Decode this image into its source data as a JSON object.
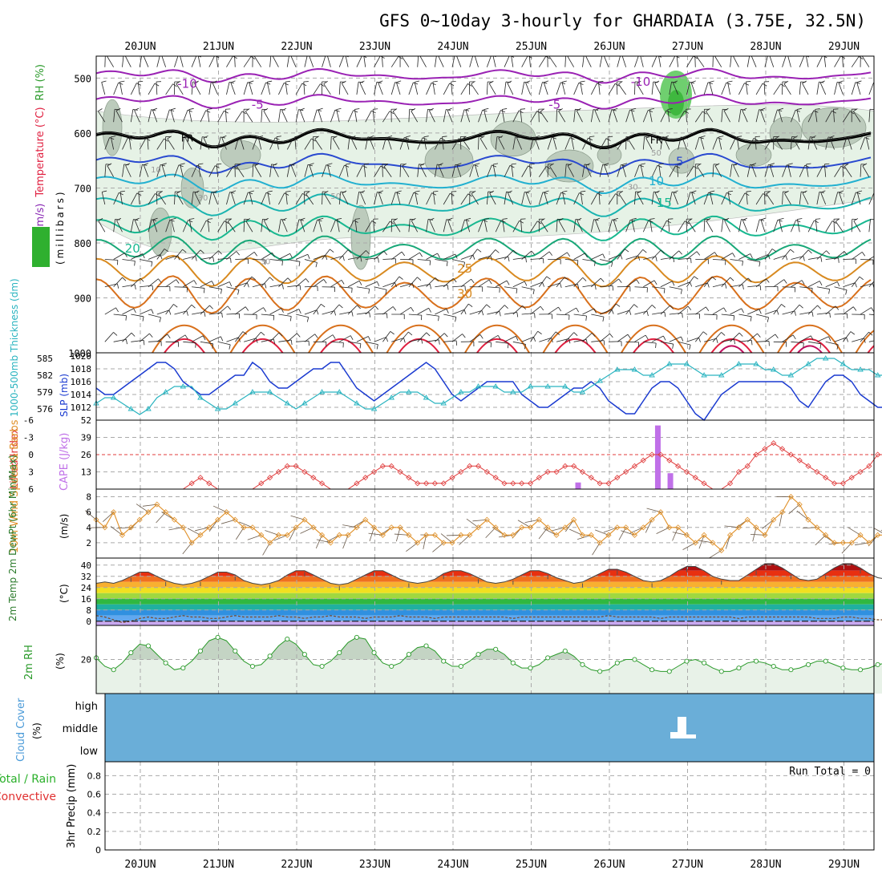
{
  "title": "GFS 0~10day 3-hourly for GHARDAIA (3.75E, 32.5N)",
  "dates": [
    "20JUN",
    "21JUN",
    "22JUN",
    "23JUN",
    "24JUN",
    "25JUN",
    "26JUN",
    "27JUN",
    "28JUN",
    "29JUN"
  ],
  "colors": {
    "temp_isotherm_cold": "#9a22b4",
    "temp_isotherm_blue": "#2a4ad0",
    "temp_isotherm_cyan": "#22b0d0",
    "temp_isotherm_teal": "#18b890",
    "temp_isotherm_orange": "#d88a20",
    "temp_isotherm_red": "#e02040",
    "rh_fill": "#e6f2e6",
    "slp_line": "#1a3ad0",
    "thickness_line": "#2ab4c0",
    "lifted_index": "#e03c3c",
    "cape_bar": "#c070e8",
    "wind_speed": "#e09028",
    "rh2m_line": "#2a9a2a",
    "cloud_fill": "#6aaed8",
    "dewpoint_fill": "#c8a8f0"
  },
  "chart_data": [
    {
      "type": "line",
      "name": "upper-air",
      "ylabel_parts": [
        "Wind (m/s)",
        "Temperature (°C)",
        "RH (%)"
      ],
      "yunit": "(millibars)",
      "yticks": [
        500,
        600,
        700,
        800,
        900,
        1000
      ],
      "ylim": [
        460,
        1000
      ],
      "isotherm_labels": [
        {
          "text": "-10",
          "x": 0.6,
          "p": 510
        },
        {
          "text": "-10",
          "x": 6.4,
          "p": 507
        },
        {
          "text": "-5",
          "x": 1.5,
          "p": 548
        },
        {
          "text": "-5",
          "x": 5.3,
          "p": 548
        },
        {
          "text": "FR",
          "x": 0.6,
          "p": 608
        },
        {
          "text": "FR",
          "x": 6.6,
          "p": 612
        },
        {
          "text": "5",
          "x": 6.9,
          "p": 652
        },
        {
          "text": "10",
          "x": 6.6,
          "p": 688
        },
        {
          "text": "15",
          "x": 6.7,
          "p": 727
        },
        {
          "text": "20",
          "x": -0.1,
          "p": 810
        },
        {
          "text": "25",
          "x": 4.15,
          "p": 847
        },
        {
          "text": "30",
          "x": 4.15,
          "p": 893
        }
      ],
      "rh_labels": [
        {
          "text": "10",
          "x": 0.2,
          "p": 666
        },
        {
          "text": "30",
          "x": 0.8,
          "p": 717
        },
        {
          "text": "50",
          "x": 2.5,
          "p": 714
        },
        {
          "text": "30",
          "x": 1.6,
          "p": 833
        },
        {
          "text": "50",
          "x": 6.6,
          "p": 635
        },
        {
          "text": "30",
          "x": 6.3,
          "p": 697
        }
      ]
    },
    {
      "type": "line",
      "name": "slp-thickness",
      "ylabel_left": "1000-500mb Thickness (dm)",
      "ylabel_right": "SLP (mb)",
      "thickness_ticks": [
        576,
        579,
        582,
        585
      ],
      "slp_ticks": [
        1012,
        1014,
        1016,
        1018,
        1020
      ],
      "series": [
        {
          "name": "SLP",
          "values": [
            1015,
            1014,
            1014,
            1015,
            1016,
            1017,
            1018,
            1019,
            1019,
            1018,
            1016,
            1015,
            1014,
            1014,
            1015,
            1016,
            1017,
            1017,
            1019,
            1018,
            1016,
            1015,
            1015,
            1016,
            1017,
            1018,
            1018,
            1019,
            1019,
            1017,
            1015,
            1014,
            1013,
            1014,
            1015,
            1016,
            1017,
            1018,
            1019,
            1018,
            1016,
            1014,
            1013,
            1014,
            1015,
            1016,
            1016,
            1016,
            1016,
            1014,
            1013,
            1012,
            1012,
            1013,
            1014,
            1015,
            1015,
            1016,
            1015,
            1013,
            1012,
            1011,
            1011,
            1013,
            1015,
            1016,
            1016,
            1015,
            1013,
            1011,
            1010,
            1012,
            1014,
            1015,
            1016,
            1016,
            1016,
            1016,
            1016,
            1016,
            1015,
            1013,
            1012,
            1014,
            1016,
            1017,
            1017,
            1016,
            1014,
            1013,
            1012,
            1012,
            1012
          ]
        },
        {
          "name": "Thickness",
          "values": [
            577,
            578,
            578,
            577,
            576,
            575,
            576,
            578,
            579,
            580,
            580,
            580,
            578,
            577,
            576,
            576,
            577,
            578,
            579,
            579,
            579,
            578,
            577,
            576,
            577,
            578,
            579,
            579,
            579,
            578,
            577,
            576,
            576,
            577,
            578,
            579,
            579,
            579,
            578,
            577,
            577,
            578,
            579,
            579,
            580,
            580,
            580,
            579,
            579,
            579,
            580,
            580,
            580,
            580,
            580,
            579,
            579,
            580,
            581,
            582,
            583,
            583,
            583,
            582,
            582,
            583,
            584,
            584,
            584,
            583,
            582,
            582,
            582,
            583,
            584,
            584,
            584,
            583,
            583,
            582,
            582,
            583,
            584,
            585,
            585,
            585,
            584,
            583,
            583,
            583,
            582,
            582,
            582
          ]
        }
      ]
    },
    {
      "type": "bar",
      "name": "li-cape",
      "ylabel_left": "Lifted Index",
      "ylabel_right": "CAPE (J/kg)",
      "li_ticks": [
        "-6",
        "-3",
        "0",
        "3",
        "6"
      ],
      "cape_ticks": [
        "52",
        "39",
        "26",
        "13"
      ],
      "li_series": {
        "name": "Lifted Index",
        "values": [
          6,
          6,
          6,
          6,
          6,
          6,
          6,
          6,
          6,
          6,
          6,
          5,
          4,
          5,
          6,
          6,
          6,
          6,
          6,
          5,
          4,
          3,
          2,
          2,
          3,
          4,
          5,
          6,
          6,
          6,
          5,
          4,
          3,
          2,
          2,
          3,
          4,
          5,
          5,
          5,
          5,
          4,
          3,
          2,
          2,
          3,
          4,
          5,
          5,
          5,
          5,
          4,
          3,
          3,
          2,
          2,
          3,
          4,
          5,
          5,
          4,
          3,
          2,
          1,
          0,
          0,
          1,
          2,
          3,
          4,
          5,
          6,
          6,
          5,
          3,
          2,
          0,
          -1,
          -2,
          -1,
          0,
          1,
          2,
          3,
          4,
          5,
          5,
          4,
          3,
          2,
          0,
          0,
          6
        ]
      },
      "cape_series": {
        "name": "CAPE",
        "points": [
          {
            "x": 5.6,
            "v": 5
          },
          {
            "x": 6.62,
            "v": 48
          },
          {
            "x": 6.78,
            "v": 12
          }
        ]
      }
    },
    {
      "type": "line",
      "name": "wind10m",
      "ylabel": "10m Wind Speed & Barbs",
      "yunit": "(m/s)",
      "yticks": [
        2,
        4,
        6,
        8
      ],
      "ylim": [
        0,
        9
      ],
      "series": [
        {
          "name": "Speed",
          "values": [
            5,
            4,
            6,
            3,
            4,
            5,
            6,
            7,
            6,
            5,
            4,
            2,
            3,
            4,
            5,
            6,
            5,
            4,
            4,
            3,
            2,
            3,
            3,
            4,
            5,
            4,
            3,
            2,
            3,
            3,
            4,
            5,
            4,
            3,
            4,
            4,
            3,
            2,
            3,
            3,
            2,
            2,
            3,
            3,
            4,
            5,
            4,
            3,
            3,
            4,
            4,
            5,
            4,
            3,
            4,
            5,
            3,
            3,
            2,
            3,
            4,
            4,
            3,
            4,
            5,
            6,
            4,
            4,
            3,
            2,
            3,
            2,
            1,
            3,
            4,
            5,
            4,
            3,
            5,
            6,
            8,
            7,
            5,
            4,
            3,
            2,
            2,
            2,
            3,
            2,
            3,
            3,
            4,
            3,
            2
          ]
        }
      ]
    },
    {
      "type": "area",
      "name": "temp-dewpt",
      "ylabel": "2m Temp 2m DewPt (6hr Min/Max)",
      "yunit": "(°C)",
      "yticks": [
        0,
        8,
        16,
        24,
        32,
        40
      ],
      "ylim": [
        -3,
        45
      ],
      "series": [
        {
          "name": "Temp",
          "values": [
            27,
            28,
            27,
            29,
            32,
            35,
            35,
            32,
            29,
            27,
            26,
            27,
            29,
            32,
            35,
            35,
            33,
            29,
            27,
            26,
            27,
            29,
            33,
            36,
            36,
            33,
            30,
            27,
            26,
            27,
            30,
            33,
            36,
            36,
            33,
            30,
            28,
            27,
            28,
            30,
            34,
            36,
            36,
            34,
            31,
            28,
            27,
            28,
            30,
            33,
            36,
            36,
            34,
            31,
            29,
            27,
            28,
            31,
            34,
            37,
            37,
            35,
            32,
            29,
            28,
            29,
            32,
            36,
            39,
            39,
            36,
            32,
            30,
            29,
            29,
            33,
            37,
            41,
            41,
            38,
            34,
            30,
            29,
            30,
            34,
            38,
            41,
            41,
            38,
            34,
            31,
            30,
            31,
            33,
            34
          ]
        },
        {
          "name": "DewPt",
          "values": [
            4,
            3,
            1,
            -1,
            0,
            2,
            3,
            2,
            2,
            3,
            4,
            3,
            3,
            2,
            2,
            3,
            4,
            3,
            3,
            3,
            3,
            4,
            3,
            3,
            2,
            3,
            3,
            4,
            3,
            3,
            3,
            2,
            3,
            3,
            3,
            4,
            3,
            3,
            3,
            2,
            3,
            3,
            3,
            3,
            3,
            3,
            3,
            3,
            2,
            3,
            3,
            3,
            3,
            3,
            3,
            3,
            3,
            3,
            3,
            4,
            3,
            3,
            3,
            3,
            3,
            2,
            3,
            3,
            3,
            3,
            3,
            3,
            3,
            3,
            2,
            3,
            3,
            3,
            3,
            3,
            3,
            3,
            3,
            2,
            2,
            2,
            3,
            3,
            2,
            2,
            1,
            1,
            1,
            2,
            1
          ]
        }
      ]
    },
    {
      "type": "area",
      "name": "rh2m",
      "ylabel": "2m RH",
      "yunit": "(%)",
      "yticks": [
        20
      ],
      "ylim": [
        0,
        40
      ],
      "series": [
        {
          "name": "RH",
          "values": [
            21,
            16,
            14,
            18,
            24,
            29,
            28,
            23,
            18,
            14,
            15,
            19,
            25,
            31,
            33,
            31,
            25,
            19,
            16,
            17,
            22,
            28,
            32,
            29,
            23,
            17,
            16,
            19,
            24,
            30,
            33,
            32,
            24,
            18,
            16,
            18,
            23,
            27,
            28,
            25,
            19,
            16,
            16,
            19,
            23,
            26,
            26,
            23,
            18,
            15,
            15,
            17,
            21,
            23,
            25,
            22,
            17,
            14,
            13,
            14,
            18,
            20,
            20,
            17,
            14,
            13,
            13,
            16,
            19,
            20,
            18,
            15,
            13,
            13,
            15,
            18,
            19,
            18,
            16,
            14,
            14,
            15,
            17,
            19,
            19,
            17,
            15,
            14,
            14,
            15,
            17,
            18,
            17,
            15,
            13
          ]
        }
      ]
    },
    {
      "type": "heatmap",
      "name": "cloud-cover",
      "ylabel": "Cloud Cover",
      "yunit": "(%)",
      "levels": [
        "high",
        "middle",
        "low"
      ]
    },
    {
      "type": "bar",
      "name": "precip",
      "ylabel_left": "Total / Rain",
      "ylabel_left2": "Convective",
      "ylabel": "3hr Precip (mm)",
      "yticks": [
        "0",
        "0.2",
        "0.4",
        "0.6",
        "0.8"
      ],
      "ylim": [
        0,
        0.95
      ],
      "run_total": "Run Total = 0"
    }
  ]
}
